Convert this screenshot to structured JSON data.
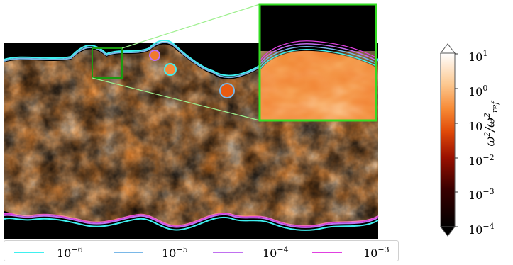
{
  "colorbar": {
    "label_base": "ω",
    "label_sup": "2",
    "label_den_base": "ω",
    "label_den_sup": "2",
    "label_den_sub": "ref",
    "ticks": [
      {
        "base": "10",
        "exp": "1"
      },
      {
        "base": "10",
        "exp": "0"
      },
      {
        "base": "10",
        "exp": "−1"
      },
      {
        "base": "10",
        "exp": "−2"
      },
      {
        "base": "10",
        "exp": "−3"
      },
      {
        "base": "10",
        "exp": "−4"
      }
    ],
    "scale": "log",
    "range": [
      0.0001,
      10
    ],
    "colormap": [
      "#000000",
      "#5a0000",
      "#b01800",
      "#e85a10",
      "#f88c3a",
      "#fdd6b0",
      "#ffffff"
    ]
  },
  "legend": {
    "items": [
      {
        "base": "10",
        "exp": "−6",
        "color": "#3ff0f0"
      },
      {
        "base": "10",
        "exp": "−5",
        "color": "#7ab8e8"
      },
      {
        "base": "10",
        "exp": "−4",
        "color": "#c070f0"
      },
      {
        "base": "10",
        "exp": "−3",
        "color": "#e040e0"
      }
    ]
  },
  "zoom_box_color": "#33dd22"
}
